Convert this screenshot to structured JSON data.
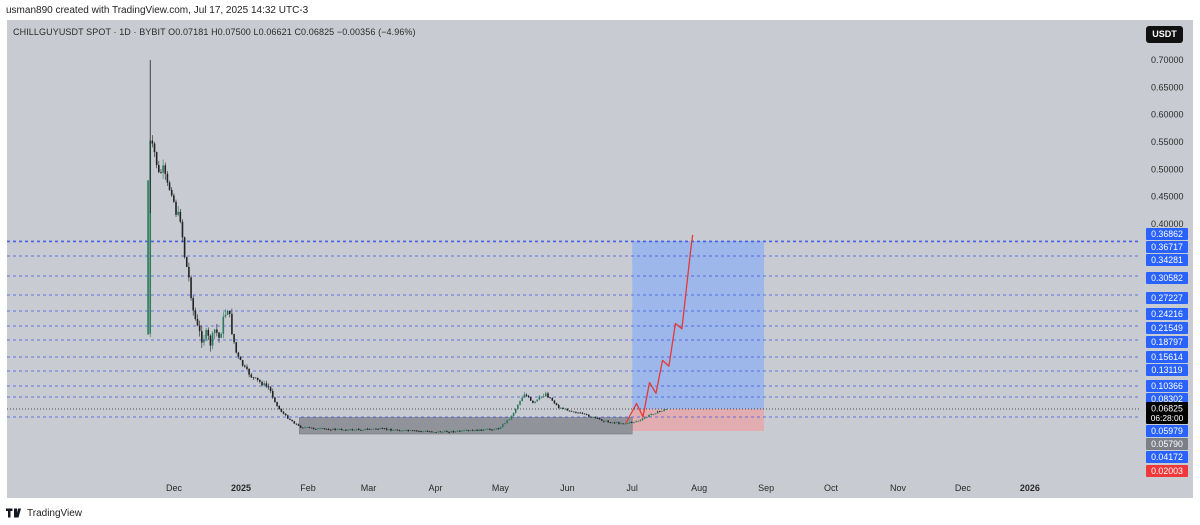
{
  "header": {
    "credit": "usman890 created with TradingView.com, Jul 17, 2025 14:32 UTC-3"
  },
  "symbol_bar": {
    "text": "CHILLGUYUSDT SPOT · 1D · BYBIT  O0.07181  H0.07500  L0.06621  C0.06825  −0.00356 (−4.96%)"
  },
  "currency_badge": "USDT",
  "footer": {
    "brand": "TradingView"
  },
  "colors": {
    "panel": "#c9cbd2",
    "up_candle": "#2b7a5a",
    "down_candle": "#222222",
    "level_line": "#3b57e6",
    "target_zone": "#8fb0f2",
    "stop_zone": "#e9a3a6",
    "accumulation_box": "#6c6f78",
    "projection_path": "#e53935",
    "price_label": "#2962ff",
    "current_price_label": "#000000",
    "support_label": "#7d7f87",
    "stop_label": "#f0383b"
  },
  "chart_data": {
    "type": "candlestick",
    "title": "CHILLGUYUSDT SPOT · 1D · BYBIT",
    "x_axis": {
      "tick_labels": [
        "Dec",
        "2025",
        "Feb",
        "Mar",
        "Apr",
        "May",
        "Jun",
        "Jul",
        "Aug",
        "Sep",
        "Oct",
        "Nov",
        "Dec",
        "2026"
      ],
      "tick_dates": [
        "2024-12-01",
        "2025-01-01",
        "2025-02-01",
        "2025-03-01",
        "2025-04-01",
        "2025-05-01",
        "2025-06-01",
        "2025-07-01",
        "2025-08-01",
        "2025-09-01",
        "2025-10-01",
        "2025-11-01",
        "2025-12-01",
        "2026-01-01"
      ]
    },
    "y_axis": {
      "scale": "linear",
      "tick_values": [
        "0.70000",
        "0.65000",
        "0.60000",
        "0.55000",
        "0.50000",
        "0.45000",
        "0.40000"
      ]
    },
    "price_close_path": [
      [
        "2024-11-19",
        0.2
      ],
      [
        "2024-11-20",
        0.55
      ],
      [
        "2024-11-22",
        0.53
      ],
      [
        "2024-11-24",
        0.49
      ],
      [
        "2024-11-26",
        0.5
      ],
      [
        "2024-11-28",
        0.47
      ],
      [
        "2024-11-30",
        0.46
      ],
      [
        "2024-12-02",
        0.42
      ],
      [
        "2024-12-04",
        0.41
      ],
      [
        "2024-12-06",
        0.34
      ],
      [
        "2024-12-08",
        0.3
      ],
      [
        "2024-12-10",
        0.24
      ],
      [
        "2024-12-12",
        0.21
      ],
      [
        "2024-12-14",
        0.19
      ],
      [
        "2024-12-16",
        0.2
      ],
      [
        "2024-12-18",
        0.18
      ],
      [
        "2024-12-20",
        0.21
      ],
      [
        "2024-12-22",
        0.19
      ],
      [
        "2024-12-24",
        0.23
      ],
      [
        "2024-12-26",
        0.25
      ],
      [
        "2024-12-28",
        0.2
      ],
      [
        "2024-12-30",
        0.16
      ],
      [
        "2025-01-02",
        0.14
      ],
      [
        "2025-01-06",
        0.12
      ],
      [
        "2025-01-10",
        0.11
      ],
      [
        "2025-01-14",
        0.1
      ],
      [
        "2025-01-18",
        0.07
      ],
      [
        "2025-01-22",
        0.06
      ],
      [
        "2025-01-28",
        0.045
      ],
      [
        "2025-02-05",
        0.042
      ],
      [
        "2025-02-20",
        0.04
      ],
      [
        "2025-03-05",
        0.042
      ],
      [
        "2025-03-20",
        0.038
      ],
      [
        "2025-04-05",
        0.036
      ],
      [
        "2025-04-20",
        0.039
      ],
      [
        "2025-04-30",
        0.042
      ],
      [
        "2025-05-06",
        0.06
      ],
      [
        "2025-05-12",
        0.09
      ],
      [
        "2025-05-16",
        0.075
      ],
      [
        "2025-05-22",
        0.09
      ],
      [
        "2025-05-28",
        0.07
      ],
      [
        "2025-06-05",
        0.065
      ],
      [
        "2025-06-12",
        0.06
      ],
      [
        "2025-06-20",
        0.052
      ],
      [
        "2025-06-28",
        0.05
      ],
      [
        "2025-07-05",
        0.055
      ],
      [
        "2025-07-10",
        0.063
      ],
      [
        "2025-07-17",
        0.06825
      ]
    ],
    "session_extremes": {
      "high": 0.7,
      "ohlc_today": {
        "open": 0.07181,
        "high": 0.075,
        "low": 0.06621,
        "close": 0.06825,
        "change": -0.00356,
        "change_pct": -4.96
      }
    },
    "horizontal_levels": [
      0.36862,
      0.36717,
      0.34281,
      0.30582,
      0.27227,
      0.24216,
      0.21549,
      0.18797,
      0.15614,
      0.13119,
      0.10366,
      0.08302,
      0.06825,
      0.05979
    ],
    "price_labels": [
      {
        "text": "0.36862",
        "kind": "level"
      },
      {
        "text": "0.36717",
        "kind": "level"
      },
      {
        "text": "0.34281",
        "kind": "level"
      },
      {
        "text": "0.30582",
        "kind": "level"
      },
      {
        "text": "0.27227",
        "kind": "level"
      },
      {
        "text": "0.24216",
        "kind": "level"
      },
      {
        "text": "0.21549",
        "kind": "level"
      },
      {
        "text": "0.18797",
        "kind": "level"
      },
      {
        "text": "0.15614",
        "kind": "level"
      },
      {
        "text": "0.13119",
        "kind": "level"
      },
      {
        "text": "0.10366",
        "kind": "level"
      },
      {
        "text": "0.08302",
        "kind": "level"
      },
      {
        "text": "0.06825",
        "kind": "current",
        "countdown": "06:28:00"
      },
      {
        "text": "0.05979",
        "kind": "level"
      },
      {
        "text": "0.05790",
        "kind": "support"
      },
      {
        "text": "0.04172",
        "kind": "level"
      },
      {
        "text": "0.02003",
        "kind": "stop"
      }
    ],
    "long_position": {
      "entry": 0.06825,
      "target": 0.36862,
      "stop": 0.02003,
      "start": "2025-07-01",
      "end": "2025-08-31"
    },
    "accumulation_box": {
      "start": "2025-01-28",
      "end": "2025-07-01",
      "low": 0.032,
      "high": 0.059
    },
    "projection_path": [
      [
        "2025-06-28",
        0.05
      ],
      [
        "2025-07-03",
        0.075
      ],
      [
        "2025-07-06",
        0.06
      ],
      [
        "2025-07-09",
        0.11
      ],
      [
        "2025-07-12",
        0.09
      ],
      [
        "2025-07-15",
        0.15
      ],
      [
        "2025-07-18",
        0.14
      ],
      [
        "2025-07-21",
        0.22
      ],
      [
        "2025-07-24",
        0.21
      ],
      [
        "2025-07-28",
        0.35
      ],
      [
        "2025-07-29",
        0.38
      ]
    ]
  }
}
